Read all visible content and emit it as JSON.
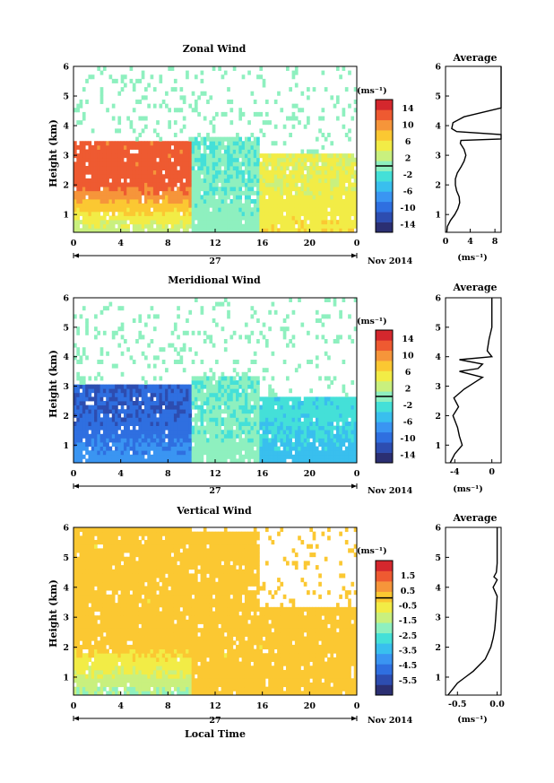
{
  "colors": {
    "scale": [
      "#2b2f72",
      "#2d4db0",
      "#2f6fe0",
      "#3a95f2",
      "#39bfee",
      "#44e0d8",
      "#8ef0bf",
      "#c9f07e",
      "#f2ec46",
      "#fbc832",
      "#f6953a",
      "#ee5a31",
      "#d4272d"
    ],
    "zero_line": "#000000"
  },
  "chart_data": [
    {
      "type": "heatmap",
      "title": "Zonal Wind",
      "ylabel": "Height (km)",
      "xticks": [
        "0",
        "4",
        "8",
        "12",
        "16",
        "20",
        "0"
      ],
      "yticks": [
        "1",
        "2",
        "3",
        "4",
        "5",
        "6"
      ],
      "date_label": "27",
      "month_label": "Nov 2014",
      "unit": "(ms⁻¹)",
      "colorbar": {
        "ticks": [
          "14",
          "10",
          "6",
          "2",
          "-2",
          "-6",
          "-10",
          "-14"
        ],
        "range": [
          -16,
          16
        ]
      },
      "ylim": [
        0.4,
        6.0
      ],
      "xlim": [
        0,
        24
      ],
      "grid": false,
      "regimes": [
        {
          "t0": 0,
          "t1": 10,
          "low": 2.0,
          "mid": 12.0,
          "top": 3.5
        },
        {
          "t0": 10,
          "t1": 15.7,
          "low": 0.0,
          "mid": -1.0,
          "top": 3.6
        },
        {
          "t0": 15.7,
          "t1": 24,
          "low": 6.0,
          "mid": 4.0,
          "top": 3.0
        }
      ]
    },
    {
      "type": "heatmap",
      "title": "Meridional Wind",
      "ylabel": "Height (km)",
      "xticks": [
        "0",
        "4",
        "8",
        "12",
        "16",
        "20",
        "0"
      ],
      "yticks": [
        "1",
        "2",
        "3",
        "4",
        "5",
        "6"
      ],
      "date_label": "27",
      "month_label": "Nov 2014",
      "unit": "(ms⁻¹)",
      "colorbar": {
        "ticks": [
          "14",
          "10",
          "6",
          "2",
          "-2",
          "-6",
          "-10",
          "-14"
        ],
        "range": [
          -16,
          16
        ]
      },
      "ylim": [
        0.4,
        6.0
      ],
      "xlim": [
        0,
        24
      ],
      "grid": false,
      "regimes": [
        {
          "t0": 0,
          "t1": 10,
          "low": -7.0,
          "mid": -11.0,
          "top": 3.0
        },
        {
          "t0": 10,
          "t1": 15.7,
          "low": 0.0,
          "mid": -1.0,
          "top": 3.4
        },
        {
          "t0": 15.7,
          "t1": 24,
          "low": -5.0,
          "mid": -3.0,
          "top": 2.6
        }
      ]
    },
    {
      "type": "heatmap",
      "title": "Vertical Wind",
      "ylabel": "Height (km)",
      "xlabel": "Local Time",
      "xticks": [
        "0",
        "4",
        "8",
        "12",
        "16",
        "20",
        "0"
      ],
      "yticks": [
        "1",
        "2",
        "3",
        "4",
        "5",
        "6"
      ],
      "date_label": "27",
      "month_label": "Nov 2014",
      "unit": "(ms⁻¹)",
      "colorbar": {
        "ticks": [
          "1.5",
          "0.5",
          "-0.5",
          "-1.5",
          "-2.5",
          "-3.5",
          "-4.5",
          "-5.5"
        ],
        "range": [
          -6.5,
          2.5
        ]
      },
      "ylim": [
        0.4,
        6.0
      ],
      "xlim": [
        0,
        24
      ],
      "grid": false,
      "regimes": [
        {
          "t0": 0,
          "t1": 10,
          "low": -1.8,
          "mid": 0.0,
          "top": 6.0
        },
        {
          "t0": 10,
          "t1": 15.7,
          "low": 0.0,
          "mid": 0.0,
          "top": 5.9
        },
        {
          "t0": 15.7,
          "t1": 24,
          "low": 0.0,
          "mid": 0.0,
          "top": 3.3
        }
      ]
    }
  ],
  "profiles": [
    {
      "type": "line",
      "title": "Average",
      "xlabel": "(ms⁻¹)",
      "xticks": [
        "0",
        "4",
        "8"
      ],
      "yticks": [
        "1",
        "2",
        "3",
        "4",
        "5",
        "6"
      ],
      "xlim": [
        0,
        9
      ],
      "ylim": [
        0.4,
        6.0
      ],
      "x": [
        0.2,
        0.3,
        0.8,
        1.5,
        2.0,
        2.3,
        2.2,
        1.8,
        1.6,
        1.6,
        1.9,
        2.5,
        3.0,
        3.3,
        3.0,
        2.4,
        2.5,
        9.0,
        9.0,
        1.8,
        1.0,
        1.2,
        3.0,
        9.0,
        9.0,
        9.0,
        9.0,
        9.0,
        9.0
      ],
      "y": [
        0.4,
        0.6,
        0.8,
        1.0,
        1.2,
        1.4,
        1.6,
        1.8,
        2.0,
        2.2,
        2.4,
        2.6,
        2.8,
        3.0,
        3.2,
        3.4,
        3.5,
        3.55,
        3.7,
        3.8,
        3.9,
        4.1,
        4.3,
        4.6,
        5.0,
        5.4,
        5.8,
        6.0,
        6.0
      ]
    },
    {
      "type": "line",
      "title": "Average",
      "xlabel": "(ms⁻¹)",
      "xticks": [
        "-4",
        "0"
      ],
      "yticks": [
        "1",
        "2",
        "3",
        "4",
        "5",
        "6"
      ],
      "xlim": [
        -5,
        1
      ],
      "ylim": [
        0.4,
        6.0
      ],
      "x": [
        -4.5,
        -4.0,
        -3.2,
        -3.5,
        -3.7,
        -4.2,
        -3.6,
        -4.1,
        -3.0,
        -2.0,
        -1.0,
        -3.5,
        -1.5,
        -1.0,
        -3.5,
        0.0,
        -0.5,
        -0.3,
        0.0,
        0.0,
        0.0,
        0.0,
        0.0,
        0.0
      ],
      "y": [
        0.4,
        0.7,
        1.0,
        1.3,
        1.6,
        2.0,
        2.3,
        2.6,
        2.9,
        3.1,
        3.3,
        3.5,
        3.6,
        3.75,
        3.9,
        4.0,
        4.2,
        4.6,
        5.0,
        5.4,
        5.6,
        5.8,
        6.0,
        6.0
      ]
    },
    {
      "type": "line",
      "title": "Average",
      "xlabel": "(ms⁻¹)",
      "xticks": [
        "-0.5",
        "0.0"
      ],
      "yticks": [
        "1",
        "2",
        "3",
        "4",
        "5",
        "6"
      ],
      "xlim": [
        -0.65,
        0.05
      ],
      "ylim": [
        0.4,
        6.0
      ],
      "x": [
        -0.62,
        -0.5,
        -0.4,
        -0.3,
        -0.15,
        -0.08,
        -0.05,
        -0.03,
        -0.02,
        -0.01,
        0.0,
        -0.05,
        -0.02,
        0.0,
        -0.04,
        -0.01,
        0.0,
        0.0,
        0.0,
        0.0,
        0.0
      ],
      "y": [
        0.4,
        0.8,
        1.0,
        1.2,
        1.6,
        2.0,
        2.3,
        2.6,
        2.9,
        3.3,
        3.7,
        4.0,
        4.15,
        4.25,
        4.35,
        4.5,
        4.8,
        5.2,
        5.6,
        5.9,
        6.0
      ]
    }
  ]
}
